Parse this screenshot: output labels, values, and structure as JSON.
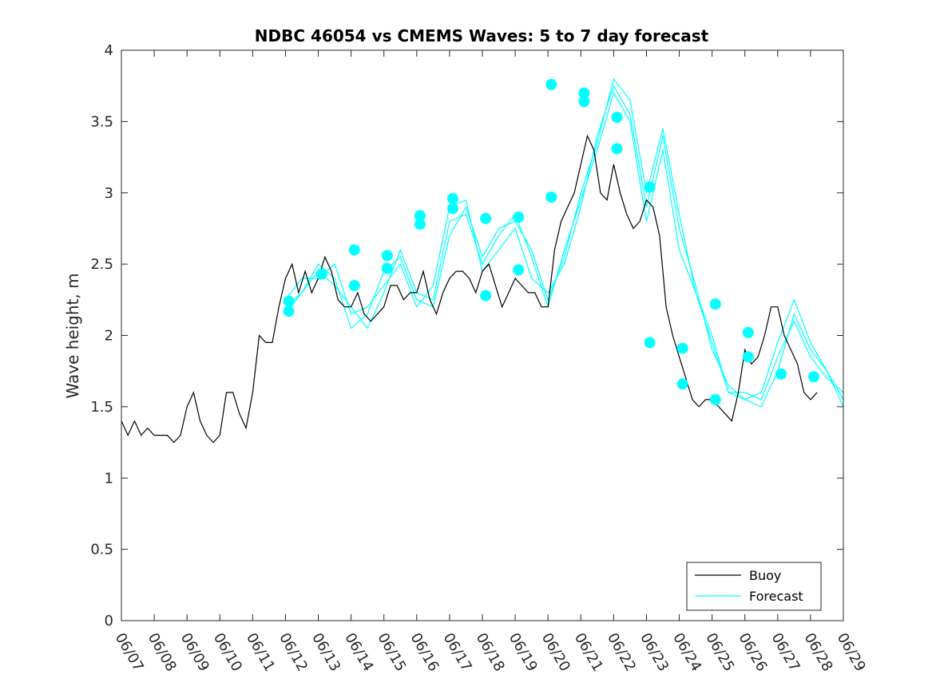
{
  "chart_data": {
    "type": "line",
    "title": "NDBC 46054 vs CMEMS Waves: 5 to 7 day forecast",
    "xlabel": "",
    "ylabel": "Wave height, m",
    "ylim": [
      0,
      4
    ],
    "yticks": [
      "0",
      "0.5",
      "1",
      "1.5",
      "2",
      "2.5",
      "3",
      "3.5",
      "4"
    ],
    "xlim": [
      "06/07",
      "06/29"
    ],
    "xticks": [
      "06/07",
      "06/08",
      "06/09",
      "06/10",
      "06/11",
      "06/12",
      "06/13",
      "06/14",
      "06/15",
      "06/16",
      "06/17",
      "06/18",
      "06/19",
      "06/20",
      "06/21",
      "06/22",
      "06/23",
      "06/24",
      "06/25",
      "06/26",
      "06/27",
      "06/28",
      "06/29"
    ],
    "grid": false,
    "legend_position": "bottom-right",
    "colors": {
      "buoy": "#000000",
      "forecast": "#00FFFF",
      "axis": "#262626"
    },
    "series": [
      {
        "name": "Buoy",
        "day_offsets": [
          0,
          0.2,
          0.4,
          0.6,
          0.8,
          1.0,
          1.2,
          1.4,
          1.6,
          1.8,
          2.0,
          2.2,
          2.4,
          2.6,
          2.8,
          3.0,
          3.2,
          3.4,
          3.6,
          3.8,
          4.0,
          4.2,
          4.4,
          4.6,
          4.8,
          5.0,
          5.2,
          5.4,
          5.6,
          5.8,
          6.0,
          6.2,
          6.4,
          6.6,
          6.8,
          7.0,
          7.2,
          7.4,
          7.6,
          7.8,
          8.0,
          8.2,
          8.4,
          8.6,
          8.8,
          9.0,
          9.2,
          9.4,
          9.6,
          9.8,
          10.0,
          10.2,
          10.4,
          10.6,
          10.8,
          11.0,
          11.2,
          11.4,
          11.6,
          11.8,
          12.0,
          12.2,
          12.4,
          12.6,
          12.8,
          13.0,
          13.2,
          13.4,
          13.6,
          13.8,
          14.0,
          14.2,
          14.4,
          14.6,
          14.8,
          15.0,
          15.2,
          15.4,
          15.6,
          15.8,
          16.0,
          16.2,
          16.4,
          16.6,
          16.8,
          17.0,
          17.2,
          17.4,
          17.6,
          17.8,
          18.0,
          18.2,
          18.4,
          18.6,
          18.8,
          19.0,
          19.2,
          19.4,
          19.6,
          19.8,
          20.0,
          20.2,
          20.4,
          20.6,
          20.8,
          21.0,
          21.2
        ],
        "values": [
          1.4,
          1.3,
          1.4,
          1.3,
          1.35,
          1.3,
          1.3,
          1.3,
          1.25,
          1.3,
          1.5,
          1.6,
          1.4,
          1.3,
          1.25,
          1.3,
          1.6,
          1.6,
          1.45,
          1.35,
          1.6,
          2.0,
          1.95,
          1.95,
          2.2,
          2.4,
          2.5,
          2.3,
          2.45,
          2.3,
          2.4,
          2.55,
          2.45,
          2.25,
          2.2,
          2.2,
          2.3,
          2.15,
          2.1,
          2.15,
          2.2,
          2.35,
          2.35,
          2.25,
          2.3,
          2.3,
          2.45,
          2.25,
          2.15,
          2.3,
          2.4,
          2.45,
          2.45,
          2.4,
          2.3,
          2.45,
          2.5,
          2.35,
          2.2,
          2.3,
          2.4,
          2.35,
          2.3,
          2.3,
          2.2,
          2.2,
          2.6,
          2.8,
          2.9,
          3.0,
          3.2,
          3.4,
          3.3,
          3.0,
          2.95,
          3.2,
          3.0,
          2.85,
          2.75,
          2.8,
          2.95,
          2.9,
          2.7,
          2.2,
          2.0,
          1.85,
          1.7,
          1.55,
          1.5,
          1.55,
          1.55,
          1.5,
          1.45,
          1.4,
          1.6,
          1.9,
          1.8,
          1.85,
          2.0,
          2.2,
          2.2,
          2.0,
          1.9,
          1.8,
          1.6,
          1.55,
          1.6
        ]
      },
      {
        "name": "Forecast",
        "runs": [
          {
            "day_offsets": [
              5.0,
              5.5,
              6.0,
              6.5,
              7.0,
              7.5,
              8.0,
              8.5,
              9.0,
              9.5,
              10.0,
              10.5,
              11.0,
              11.5,
              12.0,
              12.5,
              13.0,
              13.5,
              14.0,
              14.5,
              15.0,
              15.5,
              16.0,
              16.5,
              17.0,
              17.5,
              18.0,
              18.5,
              19.0,
              19.5,
              20.0,
              20.5,
              21.0,
              21.5,
              22.0
            ],
            "values": [
              2.2,
              2.3,
              2.45,
              2.35,
              2.2,
              2.05,
              2.3,
              2.6,
              2.3,
              2.25,
              2.8,
              2.85,
              2.5,
              2.7,
              2.85,
              2.55,
              2.2,
              2.6,
              2.95,
              3.3,
              3.7,
              3.5,
              2.8,
              3.3,
              2.6,
              2.3,
              1.95,
              1.6,
              1.6,
              1.55,
              1.85,
              2.1,
              1.85,
              1.7,
              1.6
            ]
          },
          {
            "day_offsets": [
              5.0,
              5.5,
              6.0,
              6.5,
              7.0,
              7.5,
              8.0,
              8.5,
              9.0,
              9.5,
              10.0,
              10.5,
              11.0,
              11.5,
              12.0,
              12.5,
              13.0,
              13.5,
              14.0,
              14.5,
              15.0,
              15.5,
              16.0,
              16.5,
              17.0,
              17.5,
              18.0,
              18.5,
              19.0,
              19.5,
              20.0,
              20.5,
              21.0,
              21.5,
              22.0
            ],
            "values": [
              2.25,
              2.4,
              2.4,
              2.5,
              2.15,
              2.2,
              2.35,
              2.5,
              2.2,
              2.35,
              2.9,
              2.95,
              2.45,
              2.6,
              2.75,
              2.4,
              2.3,
              2.5,
              2.9,
              3.4,
              3.75,
              3.55,
              2.9,
              3.4,
              2.75,
              2.35,
              1.9,
              1.65,
              1.55,
              1.6,
              1.95,
              2.25,
              1.95,
              1.75,
              1.55
            ]
          },
          {
            "day_offsets": [
              5.0,
              5.5,
              6.0,
              6.5,
              7.0,
              7.5,
              8.0,
              8.5,
              9.0,
              9.5,
              10.0,
              10.5,
              11.0,
              11.5,
              12.0,
              12.5,
              13.0,
              13.5,
              14.0,
              14.5,
              15.0,
              15.5,
              16.0,
              16.5,
              17.0,
              17.5,
              18.0,
              18.5,
              19.0,
              19.5,
              20.0,
              20.5,
              21.0,
              21.5,
              22.0
            ],
            "values": [
              2.15,
              2.3,
              2.5,
              2.4,
              2.05,
              2.15,
              2.45,
              2.55,
              2.25,
              2.2,
              2.7,
              2.9,
              2.55,
              2.75,
              2.8,
              2.6,
              2.25,
              2.55,
              3.0,
              3.35,
              3.8,
              3.65,
              3.0,
              3.45,
              2.85,
              2.3,
              2.0,
              1.6,
              1.55,
              1.5,
              1.75,
              2.15,
              1.9,
              1.75,
              1.5
            ]
          }
        ]
      }
    ],
    "markers": {
      "day_offsets": [
        5.1,
        5.1,
        6.1,
        7.1,
        7.1,
        8.1,
        8.1,
        9.1,
        9.1,
        10.1,
        10.1,
        11.1,
        11.1,
        12.1,
        12.1,
        13.1,
        13.1,
        14.1,
        14.1,
        15.1,
        15.1,
        16.1,
        16.1,
        17.1,
        17.1,
        18.1,
        18.1,
        19.1,
        19.1,
        20.1,
        21.1
      ],
      "values": [
        2.24,
        2.17,
        2.43,
        2.6,
        2.35,
        2.56,
        2.47,
        2.84,
        2.78,
        2.96,
        2.89,
        2.82,
        2.28,
        2.46,
        2.83,
        2.97,
        3.76,
        3.7,
        3.64,
        3.53,
        3.31,
        3.04,
        1.95,
        1.91,
        1.66,
        1.55,
        2.22,
        1.85,
        2.02,
        1.73,
        1.71
      ]
    },
    "legend": [
      "Buoy",
      "Forecast"
    ]
  }
}
